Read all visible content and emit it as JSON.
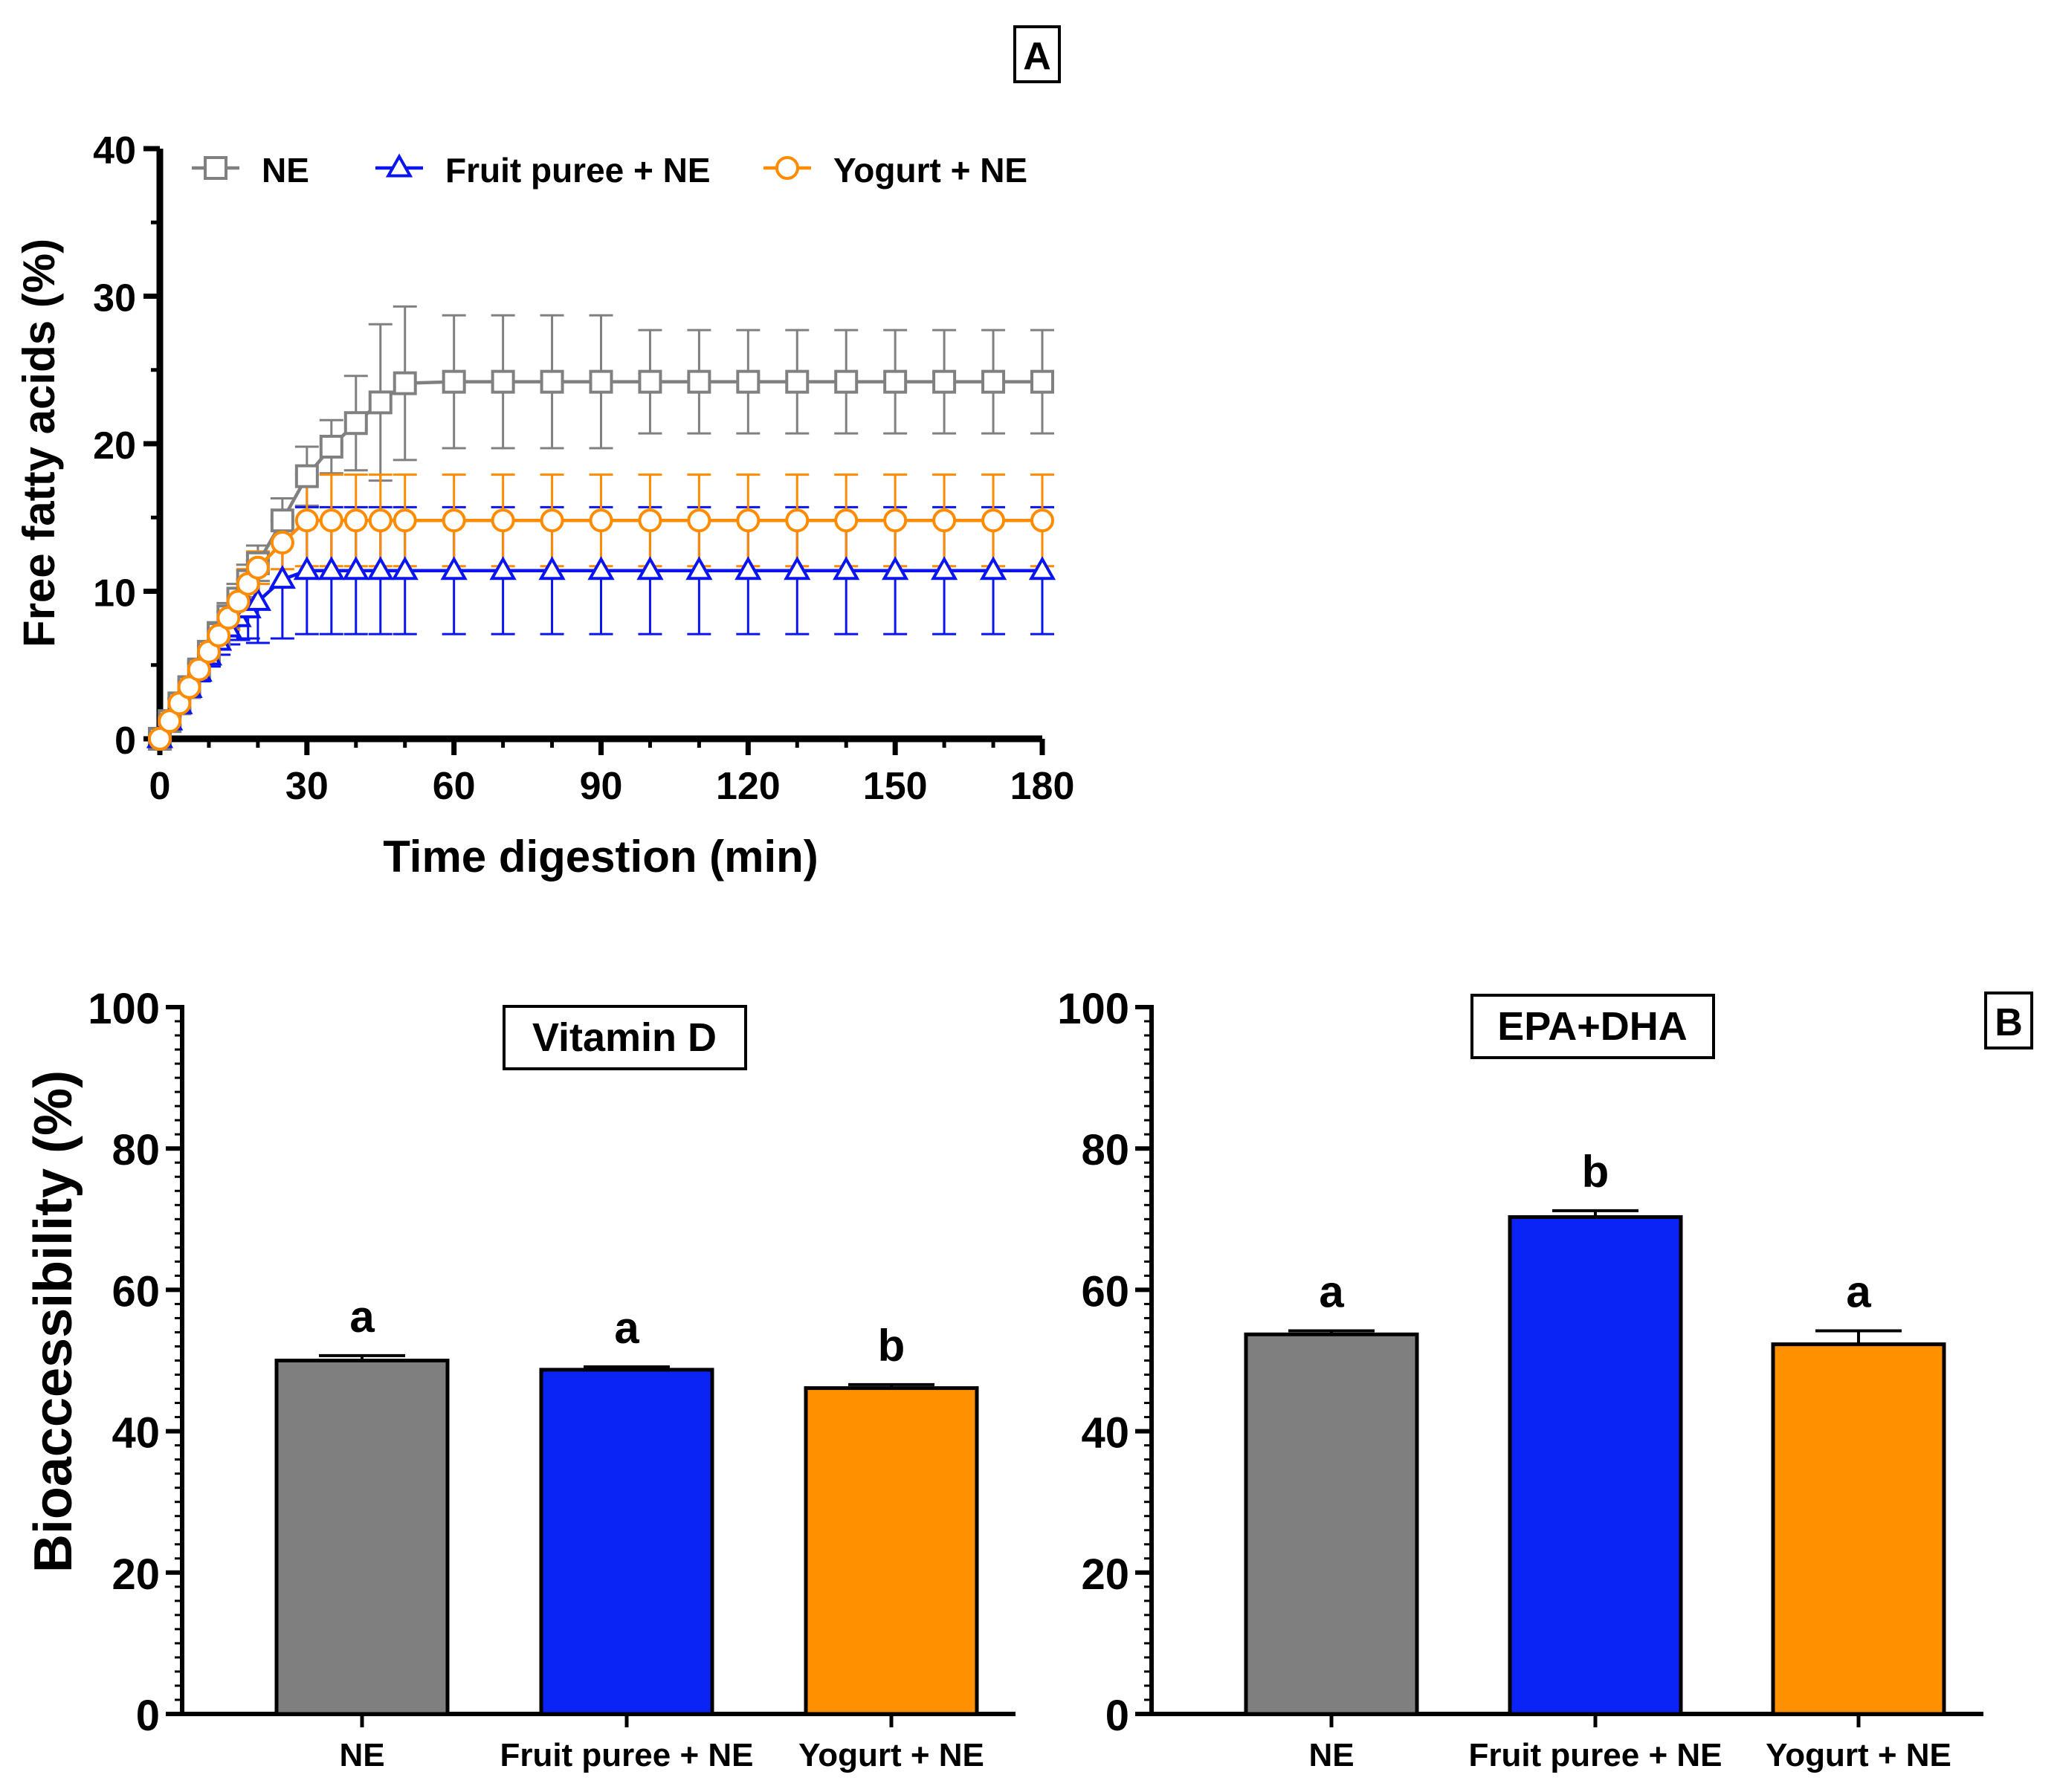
{
  "chart_data": [
    {
      "panel": "A",
      "type": "line",
      "xlabel": "Time digestion (min)",
      "ylabel": "Free fatty acids (%)",
      "xlim": [
        0,
        180
      ],
      "ylim": [
        0,
        40
      ],
      "xticks": [
        0,
        30,
        60,
        90,
        120,
        150,
        180
      ],
      "yticks": [
        0,
        10,
        20,
        30,
        40
      ],
      "legend_position": "top",
      "series": [
        {
          "name": "NE",
          "color": "#808080",
          "marker": "square",
          "x": [
            0,
            2,
            4,
            6,
            8,
            10,
            12,
            14,
            16,
            18,
            20,
            25,
            30,
            35,
            40,
            45,
            50,
            60,
            70,
            80,
            90,
            100,
            110,
            120,
            130,
            140,
            150,
            160,
            170,
            180
          ],
          "y": [
            0,
            1.2,
            2.4,
            3.5,
            4.7,
            5.9,
            7.1,
            8.3,
            9.5,
            10.7,
            11.9,
            14.8,
            17.8,
            19.8,
            21.4,
            22.8,
            24.1,
            24.2,
            24.2,
            24.2,
            24.2,
            24.2,
            24.2,
            24.2,
            24.2,
            24.2,
            24.2,
            24.2,
            24.2,
            24.2
          ],
          "err": [
            0,
            0.3,
            0.4,
            0.5,
            0.6,
            0.7,
            0.8,
            0.9,
            1.0,
            1.1,
            1.2,
            1.5,
            2.0,
            1.8,
            3.2,
            5.3,
            5.2,
            4.5,
            4.5,
            4.5,
            4.5,
            3.5,
            3.5,
            3.5,
            3.5,
            3.5,
            3.5,
            3.5,
            3.5,
            3.5
          ]
        },
        {
          "name": "Fruit puree + NE",
          "color": "#0a14ee",
          "marker": "triangle",
          "x": [
            0,
            2,
            4,
            6,
            8,
            10,
            12,
            14,
            16,
            18,
            20,
            25,
            30,
            35,
            40,
            45,
            50,
            60,
            70,
            80,
            90,
            100,
            110,
            120,
            130,
            140,
            150,
            160,
            170,
            180
          ],
          "y": [
            0,
            1.2,
            2.3,
            3.4,
            4.5,
            5.6,
            6.6,
            7.5,
            8.2,
            8.8,
            9.3,
            10.8,
            11.4,
            11.4,
            11.4,
            11.4,
            11.4,
            11.4,
            11.4,
            11.4,
            11.4,
            11.4,
            11.4,
            11.4,
            11.4,
            11.4,
            11.4,
            11.4,
            11.4,
            11.4
          ],
          "err": [
            0,
            0.3,
            0.4,
            0.5,
            0.6,
            0.7,
            0.9,
            1.1,
            1.5,
            2.0,
            2.8,
            4.0,
            4.3,
            4.3,
            4.3,
            4.3,
            4.3,
            4.3,
            4.3,
            4.3,
            4.3,
            4.3,
            4.3,
            4.3,
            4.3,
            4.3,
            4.3,
            4.3,
            4.3,
            4.3
          ]
        },
        {
          "name": "Yogurt + NE",
          "color": "#ff8c00",
          "marker": "circle",
          "x": [
            0,
            2,
            4,
            6,
            8,
            10,
            12,
            14,
            16,
            18,
            20,
            25,
            30,
            35,
            40,
            45,
            50,
            60,
            70,
            80,
            90,
            100,
            110,
            120,
            130,
            140,
            150,
            160,
            170,
            180
          ],
          "y": [
            0,
            1.2,
            2.4,
            3.5,
            4.7,
            5.9,
            7.0,
            8.2,
            9.3,
            10.5,
            11.6,
            13.3,
            14.8,
            14.8,
            14.8,
            14.8,
            14.8,
            14.8,
            14.8,
            14.8,
            14.8,
            14.8,
            14.8,
            14.8,
            14.8,
            14.8,
            14.8,
            14.8,
            14.8,
            14.8
          ],
          "err": [
            0,
            0.2,
            0.3,
            0.4,
            0.5,
            0.6,
            0.7,
            0.8,
            0.9,
            1.0,
            1.1,
            1.8,
            3.1,
            3.1,
            3.1,
            3.1,
            3.1,
            3.1,
            3.1,
            3.1,
            3.1,
            3.1,
            3.1,
            3.1,
            3.1,
            3.1,
            3.1,
            3.1,
            3.1,
            3.1
          ]
        }
      ]
    },
    {
      "panel": "B",
      "type": "bar",
      "title": "Vitamin D",
      "ylabel": "Bioaccessibility (%)",
      "ylim": [
        0,
        100
      ],
      "yticks": [
        0,
        20,
        40,
        60,
        80,
        100
      ],
      "categories": [
        "NE",
        "Fruit puree + NE",
        "Yogurt + NE"
      ],
      "values": [
        50.0,
        48.7,
        46.1
      ],
      "errors": [
        0.7,
        0.4,
        0.5
      ],
      "letters": [
        "a",
        "a",
        "b"
      ],
      "colors": [
        "#7f7f7f",
        "#0a24f6",
        "#ff9100"
      ]
    },
    {
      "panel": "B",
      "type": "bar",
      "title": "EPA+DHA",
      "ylabel": "",
      "ylim": [
        0,
        100
      ],
      "yticks": [
        0,
        20,
        40,
        60,
        80,
        100
      ],
      "categories": [
        "NE",
        "Fruit puree + NE",
        "Yogurt + NE"
      ],
      "values": [
        53.7,
        70.3,
        52.3
      ],
      "errors": [
        0.5,
        0.9,
        1.9
      ],
      "letters": [
        "a",
        "b",
        "a"
      ],
      "colors": [
        "#7f7f7f",
        "#0a24f6",
        "#ff9100"
      ]
    }
  ]
}
